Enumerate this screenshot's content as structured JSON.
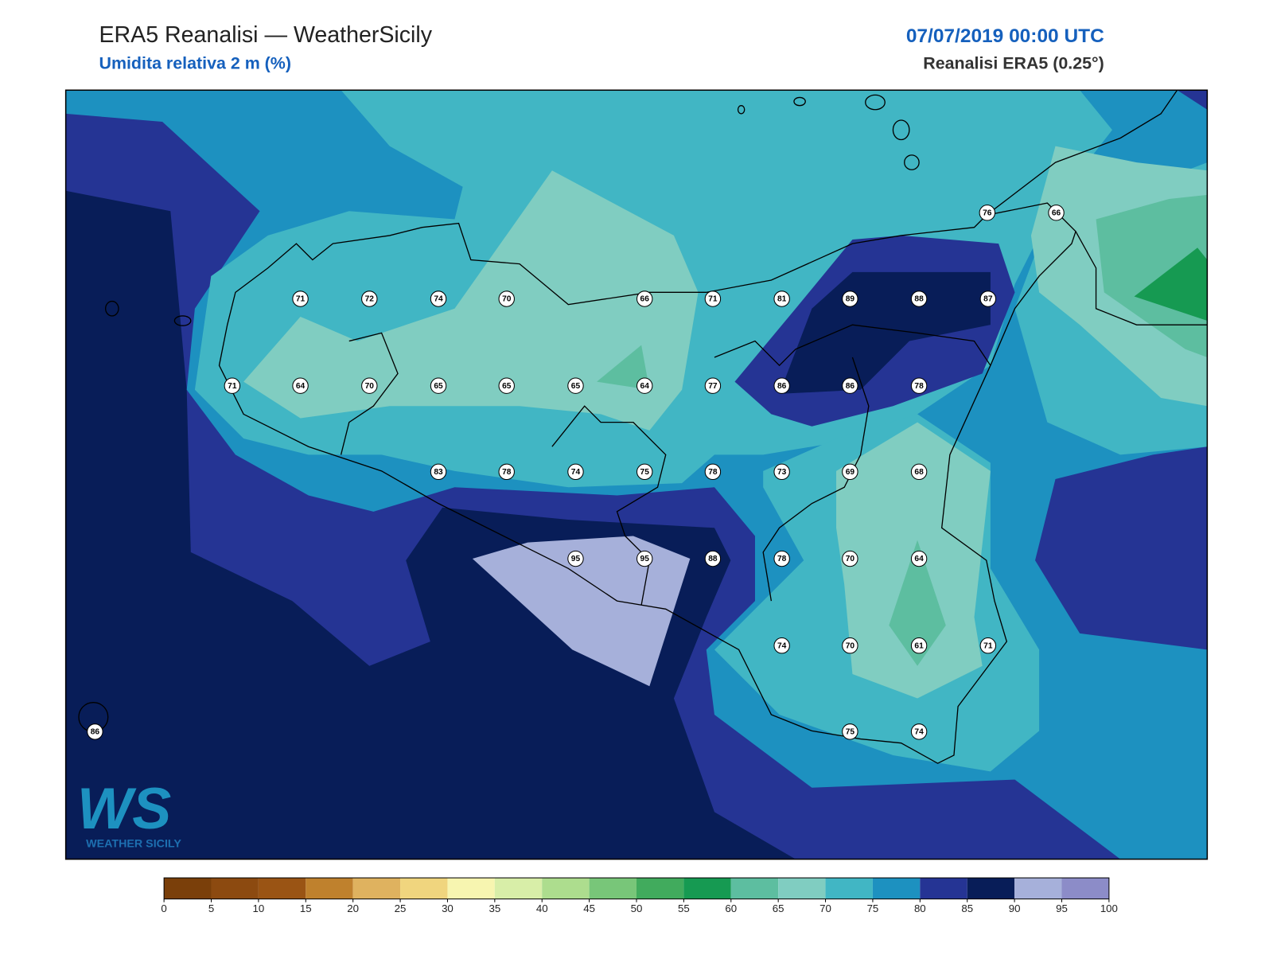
{
  "header": {
    "title": "ERA5 Reanalisi — WeatherSicily",
    "subtitle": "Umidita relativa 2 m (%)",
    "date": "07/07/2019 00:00 UTC",
    "source": "Reanalisi ERA5 (0.25°)"
  },
  "map": {
    "stations": [
      76,
      66,
      71,
      72,
      74,
      70,
      66,
      71,
      81,
      89,
      88,
      87,
      71,
      64,
      70,
      65,
      65,
      65,
      64,
      77,
      86,
      86,
      78,
      83,
      78,
      74,
      75,
      78,
      73,
      69,
      68,
      95,
      95,
      88,
      78,
      70,
      64,
      74,
      70,
      61,
      71,
      86,
      75,
      74
    ]
  },
  "colorbar": {
    "ticks": [
      0,
      5,
      10,
      15,
      20,
      25,
      30,
      35,
      40,
      45,
      50,
      55,
      60,
      65,
      70,
      75,
      80,
      85,
      90,
      95,
      100
    ],
    "colors": [
      "#7a3f0a",
      "#8c4a10",
      "#9a5414",
      "#bf812d",
      "#dfb25f",
      "#f0d57e",
      "#f7f5b0",
      "#d8eea8",
      "#addd8e",
      "#78c679",
      "#41ab5d",
      "#169a52",
      "#5dbea0",
      "#80cdc1",
      "#41b6c4",
      "#1d91c0",
      "#253494",
      "#081d58",
      "#a6b0da",
      "#8c8cc8"
    ]
  },
  "logo": {
    "mark": "WS",
    "text": "WEATHER SICILY"
  }
}
